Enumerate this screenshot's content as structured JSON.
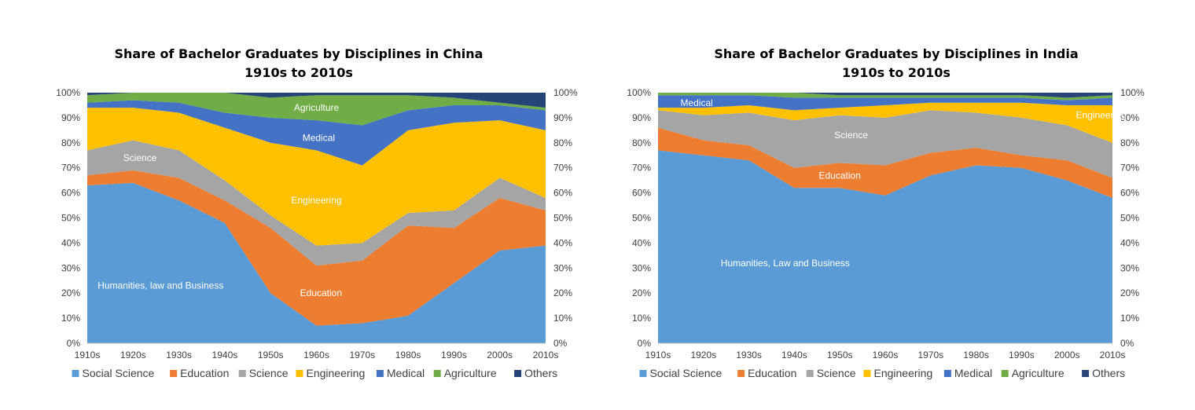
{
  "chart_data": [
    {
      "type": "area",
      "stacked": true,
      "title_line1": "Share of Bachelor Graduates by Disciplines in China",
      "title_line2": "1910s to 2010s",
      "categories": [
        "1910s",
        "1920s",
        "1930s",
        "1940s",
        "1950s",
        "1960s",
        "1970s",
        "1980s",
        "1990s",
        "2000s",
        "2010s"
      ],
      "ylim": [
        0,
        100
      ],
      "yticks": [
        "0%",
        "10%",
        "20%",
        "30%",
        "40%",
        "50%",
        "60%",
        "70%",
        "80%",
        "90%",
        "100%"
      ],
      "series": [
        {
          "name": "Social Science",
          "color": "#5B9BD5",
          "values": [
            63,
            64,
            57,
            48,
            20,
            7,
            8,
            11,
            24,
            37,
            39
          ]
        },
        {
          "name": "Education",
          "color": "#ED7D31",
          "values": [
            4,
            5,
            9,
            9,
            26,
            24,
            25,
            36,
            22,
            21,
            14
          ]
        },
        {
          "name": "Science",
          "color": "#A5A5A5",
          "values": [
            10,
            12,
            11,
            8,
            5,
            8,
            7,
            5,
            7,
            8,
            5
          ]
        },
        {
          "name": "Engineering",
          "color": "#FFC000",
          "values": [
            17,
            13,
            15,
            21,
            29,
            38,
            31,
            33,
            35,
            23,
            27
          ]
        },
        {
          "name": "Medical",
          "color": "#4472C4",
          "values": [
            2,
            3,
            4,
            6,
            10,
            12,
            16,
            8,
            7,
            6,
            8
          ]
        },
        {
          "name": "Agriculture",
          "color": "#70AD47",
          "values": [
            3,
            3,
            4,
            8,
            8,
            10,
            12,
            6,
            3,
            1,
            1
          ]
        },
        {
          "name": "Others",
          "color": "#264478",
          "values": [
            1,
            0,
            0,
            0,
            2,
            1,
            1,
            1,
            2,
            4,
            6
          ]
        }
      ],
      "annotations": [
        {
          "text": "Agriculture",
          "x": 5.0,
          "y": 94
        },
        {
          "text": "Medical",
          "x": 5.05,
          "y": 82
        },
        {
          "text": "Engineering",
          "x": 5.0,
          "y": 57
        },
        {
          "text": "Science",
          "x": 1.15,
          "y": 74
        },
        {
          "text": "Education",
          "x": 5.1,
          "y": 20
        },
        {
          "text": "Humanities, law and Business",
          "x": 1.6,
          "y": 23
        }
      ]
    },
    {
      "type": "area",
      "stacked": true,
      "title_line1": "Share of Bachelor Graduates by Disciplines in India",
      "title_line2": "1910s to 2010s",
      "categories": [
        "1910s",
        "1920s",
        "1930s",
        "1940s",
        "1950s",
        "1960s",
        "1970s",
        "1980s",
        "1990s",
        "2000s",
        "2010s"
      ],
      "ylim": [
        0,
        100
      ],
      "yticks": [
        "0%",
        "10%",
        "20%",
        "30%",
        "40%",
        "50%",
        "60%",
        "70%",
        "80%",
        "90%",
        "100%"
      ],
      "series": [
        {
          "name": "Social Science",
          "color": "#5B9BD5",
          "values": [
            77,
            75,
            73,
            62,
            62,
            59,
            67,
            71,
            70,
            65,
            58
          ]
        },
        {
          "name": "Education",
          "color": "#ED7D31",
          "values": [
            9,
            6,
            6,
            8,
            10,
            12,
            9,
            7,
            5,
            8,
            8
          ]
        },
        {
          "name": "Science",
          "color": "#A5A5A5",
          "values": [
            7,
            10,
            13,
            19,
            19,
            19,
            17,
            14,
            15,
            14,
            14
          ]
        },
        {
          "name": "Engineering",
          "color": "#FFC000",
          "values": [
            1,
            3,
            3,
            4,
            3,
            5,
            3,
            4,
            6,
            8,
            15
          ]
        },
        {
          "name": "Medical",
          "color": "#4472C4",
          "values": [
            5,
            5,
            4,
            5,
            4,
            3,
            2,
            2,
            2,
            2,
            3
          ]
        },
        {
          "name": "Agriculture",
          "color": "#70AD47",
          "values": [
            1,
            1,
            1,
            2,
            1,
            1,
            1,
            1,
            1,
            1,
            1
          ]
        },
        {
          "name": "Others",
          "color": "#264478",
          "values": [
            0,
            0,
            0,
            0,
            1,
            1,
            1,
            1,
            1,
            2,
            1
          ]
        }
      ],
      "annotations": [
        {
          "text": "Medical",
          "x": 0.85,
          "y": 96
        },
        {
          "text": "Engineering",
          "x": 9.75,
          "y": 91
        },
        {
          "text": "Science",
          "x": 4.25,
          "y": 83
        },
        {
          "text": "Education",
          "x": 4.0,
          "y": 67
        },
        {
          "text": "Humanities, Law and Business",
          "x": 2.8,
          "y": 32
        }
      ]
    }
  ]
}
